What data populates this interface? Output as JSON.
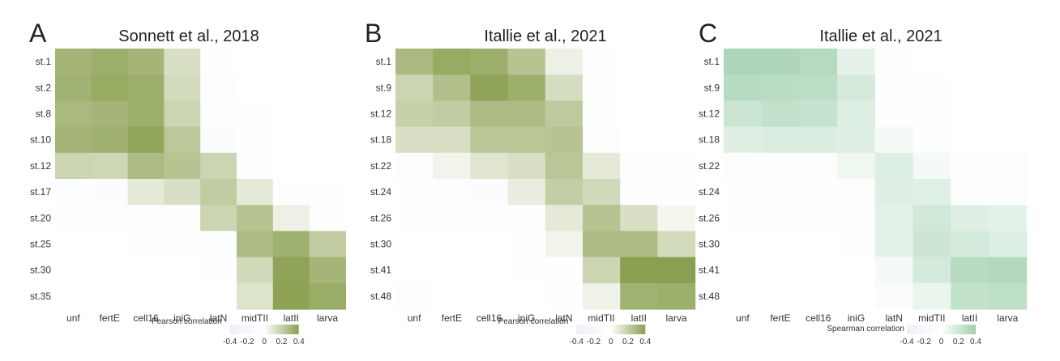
{
  "chart_data": [
    {
      "type": "heatmap",
      "panel": "A",
      "title": "Sonnett et al., 2018",
      "colorbar_label": "Pearson  correlation",
      "colorbar_ticks": [
        "-0.4",
        "-0.2",
        "0",
        "0.2",
        "0.4"
      ],
      "vmin": -0.45,
      "vmax": 0.45,
      "colormap": [
        "#eef0f8",
        "#ffffff",
        "#8aa050"
      ],
      "x": [
        "unf",
        "fertE",
        "cell16",
        "iniG",
        "latN",
        "midTII",
        "latII",
        "larva"
      ],
      "y": [
        "st.1",
        "st.2",
        "st.8",
        "st.10",
        "st.12",
        "st.17",
        "st.20",
        "st.25",
        "st.30",
        "st.35"
      ],
      "values": [
        [
          0.35,
          0.38,
          0.35,
          0.15,
          -0.04,
          -0.01,
          0.0,
          0.0
        ],
        [
          0.36,
          0.4,
          0.38,
          0.17,
          -0.05,
          -0.01,
          0.0,
          0.0
        ],
        [
          0.33,
          0.35,
          0.38,
          0.2,
          -0.07,
          -0.02,
          0.0,
          0.0
        ],
        [
          0.35,
          0.37,
          0.42,
          0.26,
          -0.1,
          -0.03,
          0.0,
          0.0
        ],
        [
          0.2,
          0.19,
          0.32,
          0.28,
          0.2,
          -0.04,
          0.0,
          0.0
        ],
        [
          -0.07,
          -0.09,
          0.1,
          0.15,
          0.24,
          0.1,
          -0.03,
          -0.03
        ],
        [
          -0.06,
          -0.06,
          -0.05,
          -0.06,
          0.2,
          0.28,
          0.07,
          -0.06
        ],
        [
          -0.01,
          -0.01,
          -0.02,
          -0.02,
          -0.07,
          0.32,
          0.37,
          0.24
        ],
        [
          0.0,
          0.0,
          0.0,
          -0.01,
          -0.02,
          0.18,
          0.43,
          0.35
        ],
        [
          0.0,
          0.0,
          0.0,
          0.0,
          -0.01,
          0.13,
          0.44,
          0.39
        ]
      ]
    },
    {
      "type": "heatmap",
      "panel": "B",
      "title": "Itallie et al., 2021",
      "colorbar_label": "Pearson  correlation",
      "colorbar_ticks": [
        "-0.4",
        "-0.2",
        "0",
        "0.2",
        "0.4"
      ],
      "vmin": -0.45,
      "vmax": 0.45,
      "colormap": [
        "#eef0f8",
        "#ffffff",
        "#8aa050"
      ],
      "x": [
        "unf",
        "fertE",
        "cell16",
        "iniG",
        "latN",
        "midTII",
        "latII",
        "larva"
      ],
      "y": [
        "st.1",
        "st.9",
        "st.12",
        "st.18",
        "st.22",
        "st.24",
        "st.26",
        "st.30",
        "st.41",
        "st.48"
      ],
      "values": [
        [
          0.33,
          0.4,
          0.38,
          0.28,
          0.07,
          -0.02,
          0.0,
          0.0
        ],
        [
          0.2,
          0.3,
          0.43,
          0.38,
          0.16,
          -0.03,
          0.0,
          0.0
        ],
        [
          0.22,
          0.24,
          0.32,
          0.32,
          0.25,
          -0.04,
          0.0,
          0.0
        ],
        [
          0.15,
          0.15,
          0.27,
          0.27,
          0.28,
          -0.05,
          -0.01,
          0.0
        ],
        [
          -0.07,
          0.05,
          0.12,
          0.15,
          0.27,
          0.1,
          -0.03,
          -0.03
        ],
        [
          -0.04,
          -0.05,
          -0.08,
          0.08,
          0.23,
          0.18,
          -0.04,
          -0.04
        ],
        [
          -0.03,
          -0.04,
          -0.06,
          -0.06,
          0.1,
          0.28,
          0.15,
          0.04
        ],
        [
          0.0,
          -0.01,
          -0.01,
          -0.03,
          0.05,
          0.32,
          0.32,
          0.17
        ],
        [
          -0.01,
          0.0,
          0.0,
          -0.02,
          -0.02,
          0.2,
          0.45,
          0.45
        ],
        [
          -0.05,
          -0.01,
          0.0,
          0.0,
          -0.03,
          0.06,
          0.36,
          0.38
        ]
      ]
    },
    {
      "type": "heatmap",
      "panel": "C",
      "title": "Itallie et al., 2021",
      "colorbar_label": "Spearman  correlation",
      "colorbar_ticks": [
        "-0.4",
        "-0.2",
        "0",
        "0.2",
        "0.4"
      ],
      "vmin": -0.45,
      "vmax": 0.45,
      "colormap": [
        "#eef0f8",
        "#ffffff",
        "#9fd0ad"
      ],
      "x": [
        "unf",
        "fertE",
        "cell16",
        "iniG",
        "latN",
        "midTII",
        "latII",
        "larva"
      ],
      "y": [
        "st.1",
        "st.9",
        "st.12",
        "st.18",
        "st.22",
        "st.24",
        "st.26",
        "st.30",
        "st.41",
        "st.48"
      ],
      "values": [
        [
          0.38,
          0.38,
          0.35,
          0.12,
          -0.06,
          -0.01,
          0.0,
          0.0
        ],
        [
          0.34,
          0.33,
          0.32,
          0.2,
          -0.04,
          -0.02,
          0.0,
          0.0
        ],
        [
          0.25,
          0.29,
          0.27,
          0.16,
          -0.05,
          -0.02,
          0.0,
          0.0
        ],
        [
          0.15,
          0.17,
          0.17,
          0.15,
          0.05,
          -0.04,
          -0.01,
          0.0
        ],
        [
          -0.06,
          -0.06,
          -0.05,
          0.08,
          0.16,
          0.05,
          -0.05,
          -0.05
        ],
        [
          -0.04,
          -0.04,
          -0.03,
          -0.05,
          0.15,
          0.14,
          -0.05,
          -0.05
        ],
        [
          -0.02,
          -0.02,
          -0.02,
          -0.03,
          0.13,
          0.22,
          0.15,
          0.12
        ],
        [
          -0.01,
          -0.01,
          -0.01,
          -0.02,
          0.12,
          0.24,
          0.2,
          0.16
        ],
        [
          0.0,
          0.0,
          0.0,
          -0.01,
          0.05,
          0.2,
          0.34,
          0.36
        ],
        [
          0.0,
          0.0,
          0.0,
          0.0,
          0.03,
          0.1,
          0.28,
          0.3
        ]
      ]
    }
  ]
}
